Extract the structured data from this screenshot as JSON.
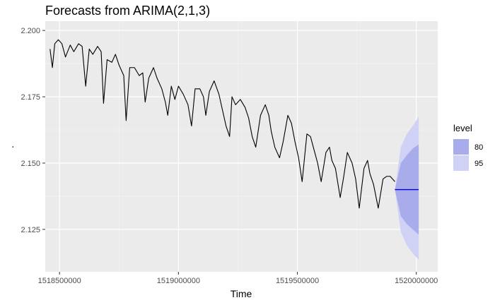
{
  "chart_data": {
    "type": "line",
    "title": "Forecasts from ARIMA(2,1,3)",
    "xlabel": "Time",
    "ylabel": ".",
    "xlim": [
      1518440000,
      1520090000
    ],
    "ylim": [
      2.109,
      2.2035
    ],
    "x_ticks": [
      1518500000,
      1519000000,
      1519500000,
      1520000000
    ],
    "x_tick_labels": [
      "1518500000",
      "1519000000",
      "1519500000",
      "1520000000"
    ],
    "y_ticks": [
      2.125,
      2.15,
      2.175,
      2.2
    ],
    "y_tick_labels": [
      "2.125",
      "2.150",
      "2.175",
      "2.200"
    ],
    "grid": true,
    "legend_placement": "right",
    "legend": {
      "title": "level",
      "items": [
        {
          "label": "80",
          "color": "#a9acea"
        },
        {
          "label": "95",
          "color": "#d0d2f5"
        }
      ]
    },
    "series": [
      {
        "role": "observed",
        "color": "#000000",
        "x": [
          1518460000,
          1518470000,
          1518480000,
          1518495000,
          1518510000,
          1518525000,
          1518545000,
          1518560000,
          1518580000,
          1518595000,
          1518610000,
          1518625000,
          1518640000,
          1518660000,
          1518675000,
          1518685000,
          1518700000,
          1518720000,
          1518735000,
          1518750000,
          1518770000,
          1518780000,
          1518795000,
          1518815000,
          1518835000,
          1518850000,
          1518860000,
          1518875000,
          1518895000,
          1518910000,
          1518930000,
          1518945000,
          1518955000,
          1518970000,
          1518985000,
          1519000000,
          1519020000,
          1519040000,
          1519055000,
          1519070000,
          1519090000,
          1519105000,
          1519115000,
          1519130000,
          1519150000,
          1519170000,
          1519185000,
          1519200000,
          1519215000,
          1519225000,
          1519240000,
          1519260000,
          1519280000,
          1519295000,
          1519310000,
          1519325000,
          1519345000,
          1519365000,
          1519380000,
          1519390000,
          1519405000,
          1519425000,
          1519440000,
          1519460000,
          1519475000,
          1519490000,
          1519505000,
          1519520000,
          1519540000,
          1519555000,
          1519570000,
          1519585000,
          1519600000,
          1519620000,
          1519635000,
          1519645000,
          1519660000,
          1519680000,
          1519695000,
          1519710000,
          1519730000,
          1519745000,
          1519760000,
          1519780000,
          1519795000,
          1519805000,
          1519820000,
          1519840000,
          1519860000,
          1519875000,
          1519890000,
          1519910000
        ],
        "y": [
          2.193,
          2.186,
          2.195,
          2.1965,
          2.195,
          2.19,
          2.1945,
          2.192,
          2.195,
          2.194,
          2.179,
          2.193,
          2.191,
          2.194,
          2.192,
          2.1725,
          2.189,
          2.188,
          2.191,
          2.187,
          2.183,
          2.166,
          2.186,
          2.186,
          2.183,
          2.184,
          2.173,
          2.182,
          2.186,
          2.182,
          2.178,
          2.173,
          2.168,
          2.179,
          2.174,
          2.179,
          2.176,
          2.172,
          2.164,
          2.178,
          2.178,
          2.175,
          2.168,
          2.177,
          2.181,
          2.176,
          2.17,
          2.164,
          2.16,
          2.175,
          2.172,
          2.174,
          2.171,
          2.167,
          2.16,
          2.156,
          2.168,
          2.172,
          2.168,
          2.162,
          2.156,
          2.152,
          2.158,
          2.168,
          2.165,
          2.158,
          2.152,
          2.143,
          2.161,
          2.16,
          2.155,
          2.15,
          2.143,
          2.154,
          2.156,
          2.151,
          2.148,
          2.137,
          2.145,
          2.154,
          2.15,
          2.144,
          2.133,
          2.148,
          2.151,
          2.146,
          2.142,
          2.133,
          2.144,
          2.145,
          2.145,
          2.143
        ]
      },
      {
        "role": "forecast",
        "color": "#0000cc",
        "x": [
          1519910000,
          1520010000
        ],
        "y": [
          2.14,
          2.14
        ]
      }
    ],
    "intervals": [
      {
        "level": "95",
        "color": "#d0d2f5",
        "x": [
          1519910000,
          1519935000,
          1519960000,
          1519985000,
          1520010000
        ],
        "lower": [
          2.14,
          2.124,
          2.119,
          2.116,
          2.1135
        ],
        "upper": [
          2.14,
          2.156,
          2.161,
          2.164,
          2.1675
        ]
      },
      {
        "level": "80",
        "color": "#a9acea",
        "x": [
          1519910000,
          1519935000,
          1519960000,
          1519985000,
          1520010000
        ],
        "lower": [
          2.14,
          2.13,
          2.127,
          2.125,
          2.123
        ],
        "upper": [
          2.14,
          2.15,
          2.153,
          2.1555,
          2.157
        ]
      }
    ]
  }
}
